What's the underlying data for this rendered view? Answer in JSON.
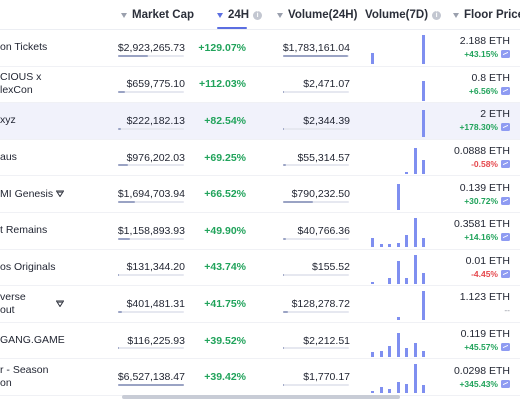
{
  "header": {
    "market_cap": "Market Cap",
    "change_24h": "24H",
    "volume_24h": "Volume(24H)",
    "volume_7d": "Volume(7D)",
    "floor_price": "Floor Price"
  },
  "colors": {
    "accent": "#5b6ee1",
    "up": "#21a35b",
    "down": "#e5484d",
    "spark": "#7f8ff0"
  },
  "rows": [
    {
      "name_lines": [
        "on Tickets"
      ],
      "verified": false,
      "market_cap": "$2,923,265.73",
      "market_cap_fill": 0.45,
      "change_24h": "+129.07%",
      "volume_24h": "$1,783,161.04",
      "volume_fill": 0.98,
      "floor_price": "2.188 ETH",
      "floor_change": "+43.15%",
      "floor_dir": "up",
      "spark": [
        0.35,
        0,
        0,
        0,
        0,
        0,
        0.95
      ]
    },
    {
      "name_lines": [
        "CIOUS x",
        "lexCon"
      ],
      "verified": false,
      "market_cap": "$659,775.10",
      "market_cap_fill": 0.1,
      "change_24h": "+112.03%",
      "volume_24h": "$2,471.07",
      "volume_fill": 0.02,
      "floor_price": "0.8 ETH",
      "floor_change": "+6.56%",
      "floor_dir": "up",
      "spark": [
        0,
        0,
        0,
        0,
        0,
        0,
        0.65
      ]
    },
    {
      "name_lines": [
        "xyz"
      ],
      "verified": false,
      "market_cap": "$222,182.13",
      "market_cap_fill": 0.04,
      "change_24h": "+82.54%",
      "volume_24h": "$2,344.39",
      "volume_fill": 0.02,
      "floor_price": "2 ETH",
      "floor_change": "+178.30%",
      "floor_dir": "up",
      "spark": [
        0,
        0,
        0,
        0,
        0,
        0,
        0.9
      ],
      "highlight": true
    },
    {
      "name_lines": [
        "aus"
      ],
      "verified": false,
      "market_cap": "$976,202.03",
      "market_cap_fill": 0.15,
      "change_24h": "+69.25%",
      "volume_24h": "$55,314.57",
      "volume_fill": 0.04,
      "floor_price": "0.0888 ETH",
      "floor_change": "-0.58%",
      "floor_dir": "down",
      "spark": [
        0,
        0,
        0,
        0,
        0.05,
        0.85,
        0.45
      ]
    },
    {
      "name_lines": [
        "MI Genesis"
      ],
      "verified": true,
      "market_cap": "$1,694,703.94",
      "market_cap_fill": 0.26,
      "change_24h": "+66.52%",
      "volume_24h": "$790,232.50",
      "volume_fill": 0.45,
      "floor_price": "0.139 ETH",
      "floor_change": "+30.72%",
      "floor_dir": "up",
      "spark": [
        0,
        0,
        0,
        0.85,
        0,
        0,
        0
      ]
    },
    {
      "name_lines": [
        "t Remains"
      ],
      "verified": false,
      "market_cap": "$1,158,893.93",
      "market_cap_fill": 0.18,
      "change_24h": "+49.90%",
      "volume_24h": "$40,766.36",
      "volume_fill": 0.04,
      "floor_price": "0.3581 ETH",
      "floor_change": "+14.16%",
      "floor_dir": "up",
      "spark": [
        0.3,
        0.1,
        0.1,
        0.12,
        0.4,
        0.95,
        0.3
      ]
    },
    {
      "name_lines": [
        "os Originals"
      ],
      "verified": false,
      "market_cap": "$131,344.20",
      "market_cap_fill": 0.02,
      "change_24h": "+43.74%",
      "volume_24h": "$155.52",
      "volume_fill": 0.01,
      "floor_price": "0.01 ETH",
      "floor_change": "-4.45%",
      "floor_dir": "down",
      "spark": [
        0.08,
        0,
        0.2,
        0.75,
        0.2,
        0.95,
        0.35
      ]
    },
    {
      "name_lines": [
        "verse",
        "out"
      ],
      "verified": true,
      "market_cap": "$401,481.31",
      "market_cap_fill": 0.06,
      "change_24h": "+41.75%",
      "volume_24h": "$128,278.72",
      "volume_fill": 0.08,
      "floor_price": "1.123 ETH",
      "floor_change": "--",
      "floor_dir": "flat",
      "spark": [
        0,
        0,
        0,
        0.1,
        0,
        0,
        0.98
      ]
    },
    {
      "name_lines": [
        "GANG.GAME"
      ],
      "verified": false,
      "market_cap": "$116,225.93",
      "market_cap_fill": 0.02,
      "change_24h": "+39.52%",
      "volume_24h": "$2,212.51",
      "volume_fill": 0.01,
      "floor_price": "0.119 ETH",
      "floor_change": "+45.57%",
      "floor_dir": "up",
      "spark": [
        0.15,
        0.2,
        0.35,
        0.8,
        0.3,
        0.45,
        0.2
      ]
    },
    {
      "name_lines": [
        "r - Season",
        "on"
      ],
      "verified": false,
      "market_cap": "$6,527,138.47",
      "market_cap_fill": 1.0,
      "change_24h": "+39.42%",
      "volume_24h": "$1,770.17",
      "volume_fill": 0.01,
      "floor_price": "0.0298 ETH",
      "floor_change": "+345.43%",
      "floor_dir": "up",
      "spark": [
        0.05,
        0.2,
        0.12,
        0.35,
        0.3,
        0.95,
        0.25
      ]
    }
  ]
}
